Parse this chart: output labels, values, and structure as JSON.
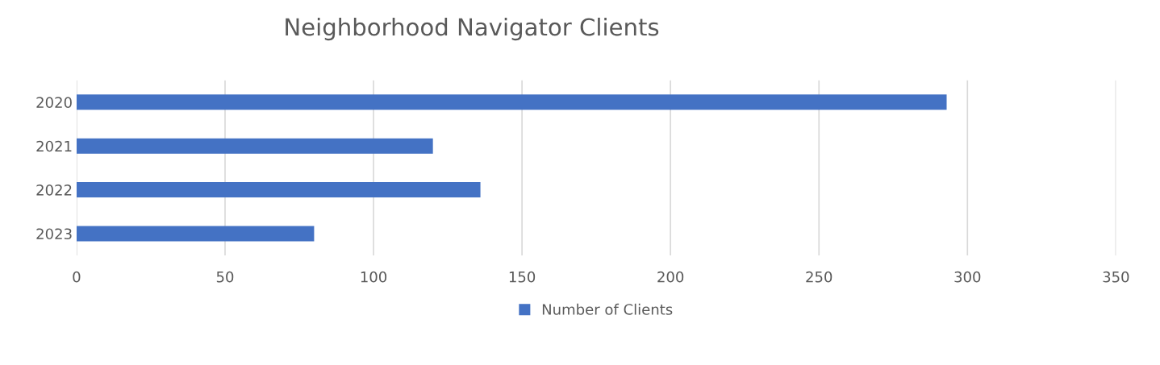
{
  "chart_data": {
    "type": "bar",
    "title": "Neighborhood Navigator Clients",
    "orientation": "horizontal",
    "categories": [
      "2020",
      "2021",
      "2022",
      "2023"
    ],
    "series": [
      {
        "name": "Number of Clients",
        "color": "#4472c4",
        "values": [
          293,
          120,
          136,
          80
        ]
      }
    ],
    "xlim": [
      0,
      350
    ],
    "xticks": [
      0,
      50,
      100,
      150,
      200,
      250,
      300,
      350
    ],
    "grid": "x",
    "legend": "bottom"
  }
}
